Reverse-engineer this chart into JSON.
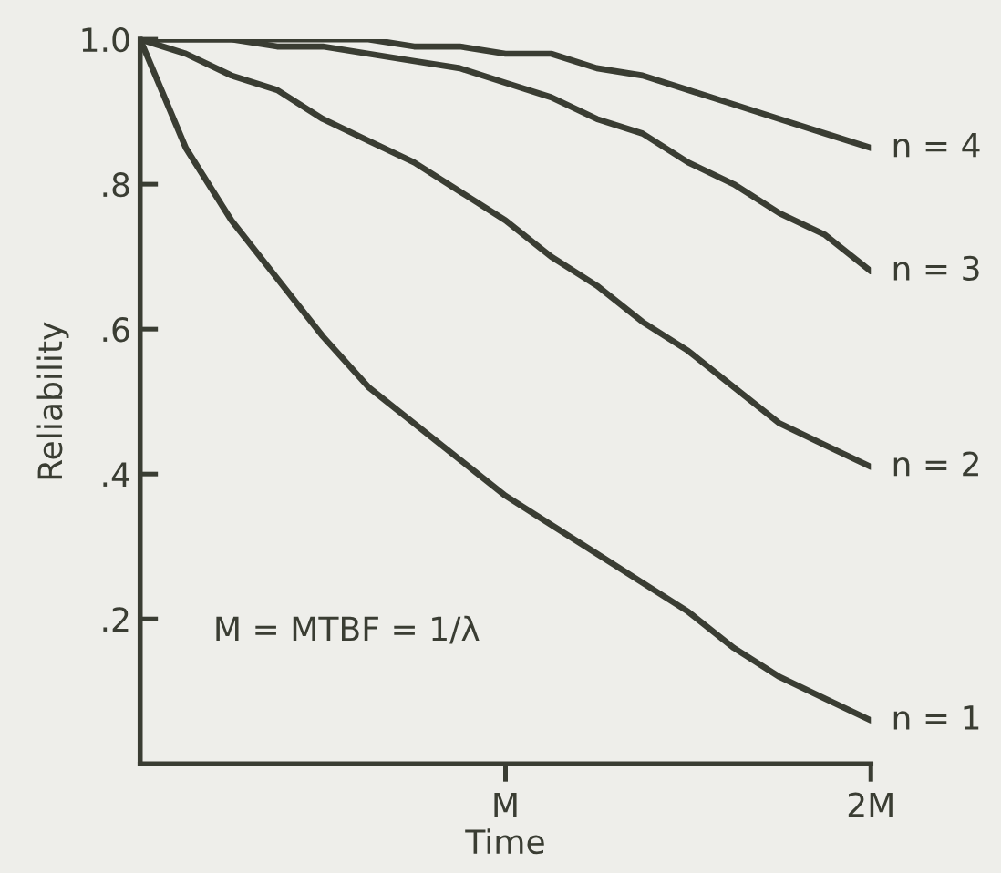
{
  "chart_data": {
    "type": "line",
    "xlabel": "Time",
    "ylabel": "Reliability",
    "categories": [
      null,
      null,
      null,
      null,
      null,
      null,
      null,
      null,
      "M",
      null,
      null,
      null,
      null,
      null,
      null,
      null,
      "2M"
    ],
    "ylim": [
      0,
      1.0
    ],
    "yticks": [
      {
        "value": 0.2,
        "label": ".2"
      },
      {
        "value": 0.4,
        "label": ".4"
      },
      {
        "value": 0.6,
        "label": ".6"
      },
      {
        "value": 0.8,
        "label": ".8"
      },
      {
        "value": 1.0,
        "label": "1.0"
      }
    ],
    "grid": false,
    "legend": false,
    "marker": "none",
    "line_style": "solid",
    "annotations": [
      "M = MTBF = 1/λ"
    ],
    "series": [
      {
        "name": "n = 4",
        "color": "#3a3d33",
        "values": [
          1.0,
          1.0,
          1.0,
          1.0,
          1.0,
          1.0,
          0.99,
          0.99,
          0.98,
          0.98,
          0.96,
          0.95,
          0.93,
          0.91,
          0.89,
          0.87,
          0.85
        ]
      },
      {
        "name": "n = 3",
        "color": "#3a3d33",
        "values": [
          1.0,
          1.0,
          1.0,
          0.99,
          0.99,
          0.98,
          0.97,
          0.96,
          0.94,
          0.92,
          0.89,
          0.87,
          0.83,
          0.8,
          0.76,
          0.73,
          0.68
        ]
      },
      {
        "name": "n = 2",
        "color": "#3a3d33",
        "values": [
          1.0,
          0.98,
          0.95,
          0.93,
          0.89,
          0.86,
          0.83,
          0.79,
          0.75,
          0.7,
          0.66,
          0.61,
          0.57,
          0.52,
          0.47,
          0.44,
          0.41
        ]
      },
      {
        "name": "n = 1",
        "color": "#3a3d33",
        "values": [
          1.0,
          0.85,
          0.75,
          0.67,
          0.59,
          0.52,
          0.47,
          0.42,
          0.37,
          0.33,
          0.29,
          0.25,
          0.21,
          0.16,
          0.12,
          0.09,
          0.06
        ]
      }
    ]
  }
}
